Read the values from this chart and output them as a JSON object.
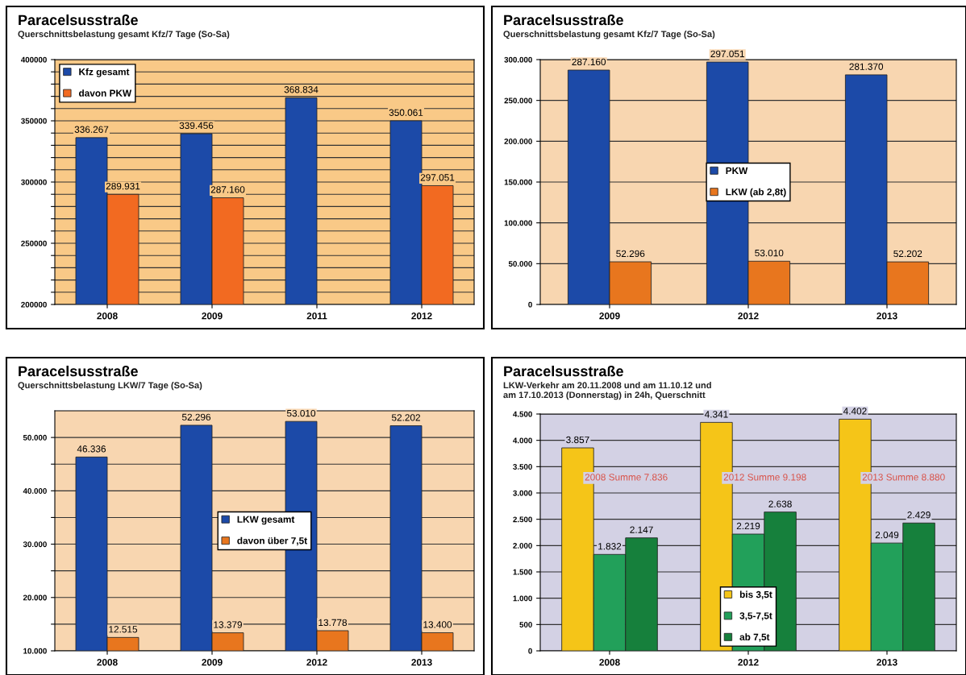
{
  "chart_data": [
    {
      "type": "bar",
      "title": "Paracelsusstraße",
      "subtitle": "Querschnittsbelastung gesamt Kfz/7 Tage (So-Sa)",
      "categories": [
        "2008",
        "2009",
        "2011",
        "2012"
      ],
      "series": [
        {
          "name": "Kfz gesamt",
          "color": "#1c4aa8",
          "values": [
            336267,
            339456,
            368834,
            350061
          ],
          "value_labels": [
            "336.267",
            "339.456",
            "368.834",
            "350.061"
          ]
        },
        {
          "name": "davon PKW",
          "color": "#f26a21",
          "values": [
            289931,
            287160,
            null,
            297051
          ],
          "value_labels": [
            "289.931",
            "287.160",
            null,
            "297.051"
          ]
        }
      ],
      "ylim": [
        200000,
        400000
      ],
      "yticks": [
        200000,
        {
          "value": 210000,
          "label": null
        },
        {
          "value": 220000,
          "label": null
        },
        {
          "value": 230000,
          "label": null
        },
        {
          "value": 240000,
          "label": null
        },
        250000,
        {
          "value": 260000,
          "label": null
        },
        {
          "value": 270000,
          "label": null
        },
        {
          "value": 280000,
          "label": null
        },
        {
          "value": 290000,
          "label": null
        },
        300000,
        {
          "value": 310000,
          "label": null
        },
        {
          "value": 320000,
          "label": null
        },
        {
          "value": 330000,
          "label": null
        },
        {
          "value": 340000,
          "label": null
        },
        350000,
        {
          "value": 360000,
          "label": null
        },
        {
          "value": 370000,
          "label": null
        },
        {
          "value": 380000,
          "label": null
        },
        {
          "value": 390000,
          "label": null
        },
        400000
      ],
      "grid": "y",
      "legend": "top left"
    },
    {
      "type": "bar",
      "title": "Paracelsusstraße",
      "subtitle": "Querschnittsbelastung gesamt Kfz/7 Tage (So-Sa)",
      "categories": [
        "2009",
        "2012",
        "2013"
      ],
      "series": [
        {
          "name": "PKW",
          "color": "#1c4aa8",
          "values": [
            287160,
            297051,
            281370
          ],
          "value_labels": [
            "287.160",
            "297.051",
            "281.370"
          ]
        },
        {
          "name": "LKW (ab 2,8t)",
          "color": "#e8761e",
          "values": [
            52296,
            53010,
            52202
          ],
          "value_labels": [
            "52.296",
            "53.010",
            "52.202"
          ]
        }
      ],
      "ylim": [
        0,
        300000
      ],
      "yticks": [
        0,
        {
          "value": 50000,
          "label": "50.000"
        },
        {
          "value": 100000,
          "label": "100.000"
        },
        {
          "value": 150000,
          "label": "150.000"
        },
        {
          "value": 200000,
          "label": "200.000"
        },
        {
          "value": 250000,
          "label": "250.000"
        },
        {
          "value": 300000,
          "label": "300.000"
        }
      ],
      "grid": "y",
      "legend": "center"
    },
    {
      "type": "bar",
      "title": "Paracelsusstraße",
      "subtitle": "Querschnittsbelastung LKW/7 Tage (So-Sa)",
      "categories": [
        "2008",
        "2009",
        "2012",
        "2013"
      ],
      "series": [
        {
          "name": "LKW gesamt",
          "color": "#1c4aa8",
          "values": [
            46336,
            52296,
            53010,
            52202
          ],
          "value_labels": [
            "46.336",
            "52.296",
            "53.010",
            "52.202"
          ]
        },
        {
          "name": "davon über 7,5t",
          "color": "#e8761e",
          "values": [
            12515,
            13379,
            13778,
            13400
          ],
          "value_labels": [
            "12.515",
            "13.379",
            "13.778",
            "13.400"
          ]
        }
      ],
      "ylim": [
        10000,
        55000
      ],
      "yticks": [
        {
          "value": 10000,
          "label": "10.000"
        },
        {
          "value": 15000,
          "label": null
        },
        {
          "value": 20000,
          "label": "20.000"
        },
        {
          "value": 25000,
          "label": null
        },
        {
          "value": 30000,
          "label": "30.000"
        },
        {
          "value": 35000,
          "label": null
        },
        {
          "value": 40000,
          "label": "40.000"
        },
        {
          "value": 45000,
          "label": null
        },
        {
          "value": 50000,
          "label": "50.000"
        }
      ],
      "grid": "y",
      "legend": "center"
    },
    {
      "type": "bar",
      "title": "Paracelsusstraße",
      "subtitle": "LKW-Verkehr am 20.11.2008 und am 11.10.12 und\nam 17.10.2013 (Donnerstag) in 24h, Querschnitt",
      "categories": [
        "2008",
        "2012",
        "2013"
      ],
      "series": [
        {
          "name": "bis 3,5t",
          "color": "#f5c518",
          "values": [
            3857,
            4341,
            4402
          ],
          "value_labels": [
            "3.857",
            "4.341",
            "4.402"
          ]
        },
        {
          "name": "3,5-7,5t",
          "color": "#22a05a",
          "values": [
            1832,
            2219,
            2049
          ],
          "value_labels": [
            "1.832",
            "2.219",
            "2.049"
          ]
        },
        {
          "name": "ab 7,5t",
          "color": "#16803c",
          "values": [
            2147,
            2638,
            2429
          ],
          "value_labels": [
            "2.147",
            "2.638",
            "2.429"
          ]
        }
      ],
      "annotations": [
        "2008 Summe 7.836",
        "2012 Summe 9.198",
        "2013 Summe 8.880"
      ],
      "ylim": [
        0,
        4500
      ],
      "yticks": [
        0,
        500,
        {
          "value": 1000,
          "label": "1.000"
        },
        {
          "value": 1500,
          "label": "1.500"
        },
        {
          "value": 2000,
          "label": "2.000"
        },
        {
          "value": 2500,
          "label": "2.500"
        },
        {
          "value": 3000,
          "label": "3.000"
        },
        {
          "value": 3500,
          "label": "3.500"
        },
        {
          "value": 4000,
          "label": "4.000"
        },
        {
          "value": 4500,
          "label": "4.500"
        }
      ],
      "grid": "y",
      "legend": "bottom"
    }
  ]
}
